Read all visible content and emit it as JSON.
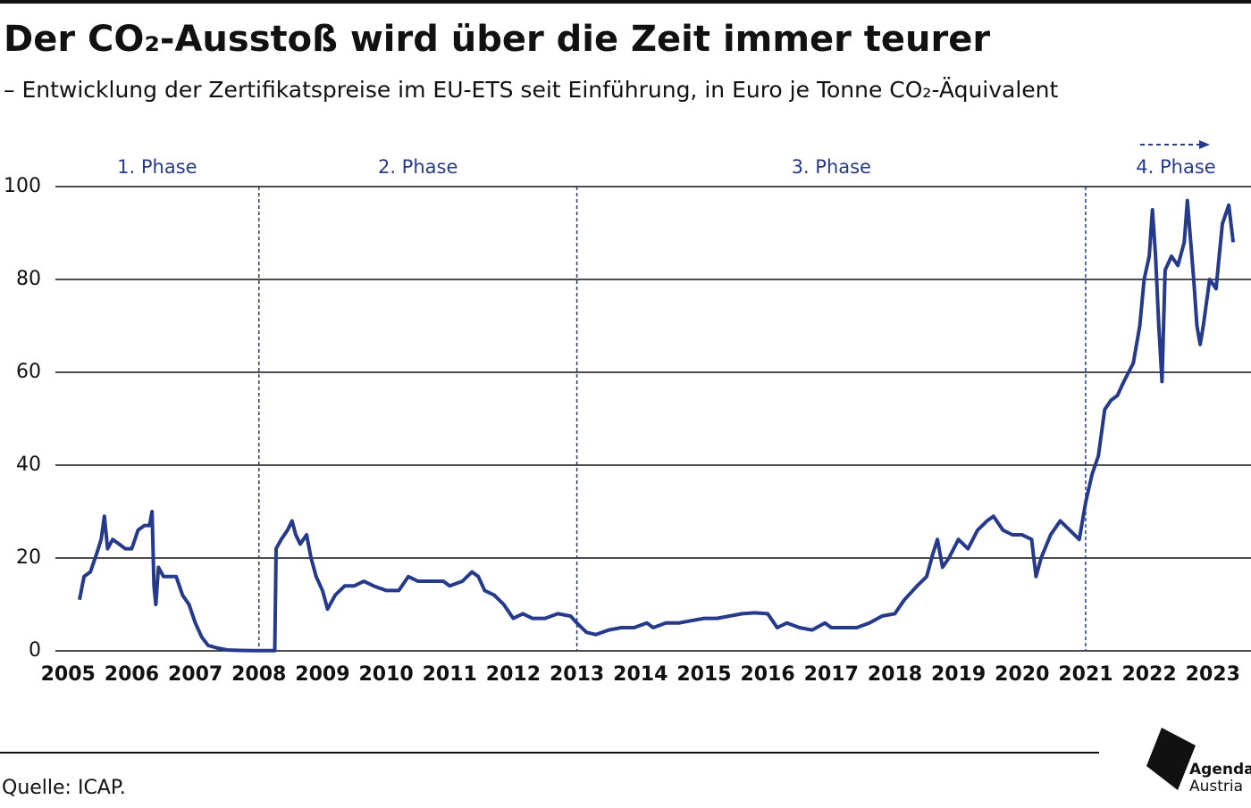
{
  "chart_data": {
    "type": "line",
    "title": "Der CO₂-Ausstoß wird über die Zeit immer teurer",
    "subtitle": "– Entwicklung der Zertifikatspreise im EU-ETS seit Einführung, in Euro je Tonne CO₂-Äquivalent",
    "source": "Quelle: ICAP.",
    "logo_text": [
      "Agenda",
      "Austria"
    ],
    "annotations": [
      "1. Phase",
      "2. Phase",
      "3. Phase",
      "4. Phase"
    ],
    "phase_lines": [
      2008,
      2013,
      2021
    ],
    "xlim": [
      2004.8,
      2023.6
    ],
    "xticks": [
      2005,
      2006,
      2007,
      2008,
      2009,
      2010,
      2011,
      2012,
      2013,
      2014,
      2015,
      2016,
      2017,
      2018,
      2019,
      2020,
      2021,
      2022,
      2023
    ],
    "ylim": [
      0,
      100
    ],
    "yticks": [
      0,
      20,
      40,
      60,
      80,
      100
    ],
    "grid": true,
    "series": [
      {
        "name": "Zertifikatspreis",
        "color": "#263a8c",
        "x": [
          2005.18,
          2005.25,
          2005.35,
          2005.45,
          2005.52,
          2005.57,
          2005.62,
          2005.7,
          2005.8,
          2005.9,
          2006.0,
          2006.1,
          2006.2,
          2006.28,
          2006.32,
          2006.35,
          2006.38,
          2006.42,
          2006.5,
          2006.6,
          2006.7,
          2006.8,
          2006.9,
          2007.0,
          2007.1,
          2007.2,
          2007.35,
          2007.5,
          2007.7,
          2007.9,
          2008.1,
          2008.25,
          2008.27,
          2008.35,
          2008.45,
          2008.52,
          2008.58,
          2008.65,
          2008.75,
          2008.82,
          2008.9,
          2009.0,
          2009.08,
          2009.2,
          2009.35,
          2009.5,
          2009.65,
          2009.8,
          2010.0,
          2010.2,
          2010.35,
          2010.5,
          2010.7,
          2010.9,
          2011.0,
          2011.2,
          2011.35,
          2011.45,
          2011.55,
          2011.7,
          2011.85,
          2012.0,
          2012.15,
          2012.3,
          2012.5,
          2012.7,
          2012.9,
          2013.0,
          2013.15,
          2013.3,
          2013.5,
          2013.7,
          2013.9,
          2014.1,
          2014.2,
          2014.4,
          2014.6,
          2014.8,
          2015.0,
          2015.2,
          2015.4,
          2015.6,
          2015.8,
          2016.0,
          2016.15,
          2016.3,
          2016.5,
          2016.7,
          2016.9,
          2017.0,
          2017.2,
          2017.4,
          2017.6,
          2017.8,
          2018.0,
          2018.15,
          2018.35,
          2018.5,
          2018.6,
          2018.67,
          2018.75,
          2018.85,
          2019.0,
          2019.15,
          2019.3,
          2019.45,
          2019.55,
          2019.7,
          2019.85,
          2020.0,
          2020.15,
          2020.22,
          2020.3,
          2020.45,
          2020.6,
          2020.75,
          2020.9,
          2021.0,
          2021.1,
          2021.2,
          2021.3,
          2021.4,
          2021.5,
          2021.6,
          2021.75,
          2021.85,
          2021.92,
          2022.0,
          2022.05,
          2022.1,
          2022.15,
          2022.2,
          2022.25,
          2022.35,
          2022.45,
          2022.55,
          2022.6,
          2022.7,
          2022.75,
          2022.8,
          2022.85,
          2022.95,
          2023.05,
          2023.1,
          2023.15,
          2023.25,
          2023.32
        ],
        "values": [
          11,
          16,
          17,
          21,
          24,
          29,
          22,
          24,
          23,
          22,
          22,
          26,
          27,
          27,
          30,
          14,
          10,
          18,
          16,
          16,
          16,
          12,
          10,
          6,
          3,
          1.2,
          0.6,
          0.2,
          0.1,
          0.05,
          0.05,
          0.05,
          22,
          24,
          26,
          28,
          25,
          23,
          25,
          20,
          16,
          13,
          9,
          12,
          14,
          14,
          15,
          14,
          13,
          13,
          16,
          15,
          15,
          15,
          14,
          15,
          17,
          16,
          13,
          12,
          10,
          7,
          8,
          7,
          7,
          8,
          7.5,
          6,
          4,
          3.5,
          4.5,
          5,
          5,
          6,
          5,
          6,
          6,
          6.5,
          7,
          7,
          7.5,
          8,
          8.2,
          8,
          5,
          6,
          5,
          4.5,
          6,
          5,
          5,
          5,
          6,
          7.5,
          8,
          11,
          14,
          16,
          21,
          24,
          18,
          20,
          24,
          22,
          26,
          28,
          29,
          26,
          25,
          25,
          24,
          16,
          20,
          25,
          28,
          26,
          24,
          32,
          38,
          42,
          52,
          54,
          55,
          58,
          62,
          70,
          80,
          85,
          95,
          85,
          70,
          58,
          82,
          85,
          83,
          88,
          97,
          80,
          70,
          66,
          70,
          80,
          78,
          85,
          92,
          96,
          88
        ]
      }
    ]
  }
}
